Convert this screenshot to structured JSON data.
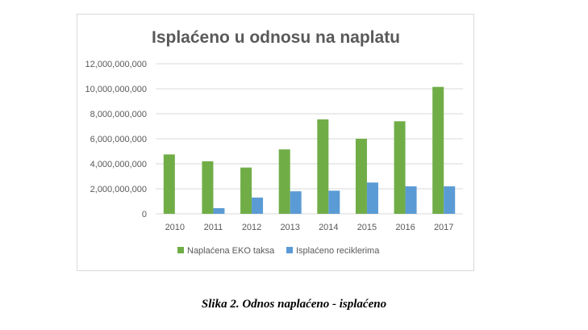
{
  "caption": "Slika 2. Odnos naplaćeno - isplaćeno",
  "chart_data": {
    "type": "bar",
    "title": "Isplaćeno  u odnosu  na naplatu",
    "categories": [
      "2010",
      "2011",
      "2012",
      "2013",
      "2014",
      "2015",
      "2016",
      "2017"
    ],
    "series": [
      {
        "name": "Naplaćena EKO taksa",
        "color": "#70ad47",
        "values": [
          4750000000,
          4200000000,
          3700000000,
          5150000000,
          7550000000,
          6000000000,
          7400000000,
          10150000000
        ]
      },
      {
        "name": "Isplaćeno reciklerima",
        "color": "#5b9bd5",
        "values": [
          0,
          450000000,
          1300000000,
          1800000000,
          1850000000,
          2500000000,
          2200000000,
          2200000000
        ]
      }
    ],
    "ylim": [
      0,
      12000000000
    ],
    "yticks": [
      0,
      2000000000,
      4000000000,
      6000000000,
      8000000000,
      10000000000,
      12000000000
    ],
    "ytick_labels": [
      "0",
      "2,000,000,000",
      "4,000,000,000",
      "6,000,000,000",
      "8,000,000,000",
      "10,000,000,000",
      "12,000,000,000"
    ],
    "grid": true,
    "legend_position": "bottom",
    "gridline_color": "#d9d9d9"
  }
}
